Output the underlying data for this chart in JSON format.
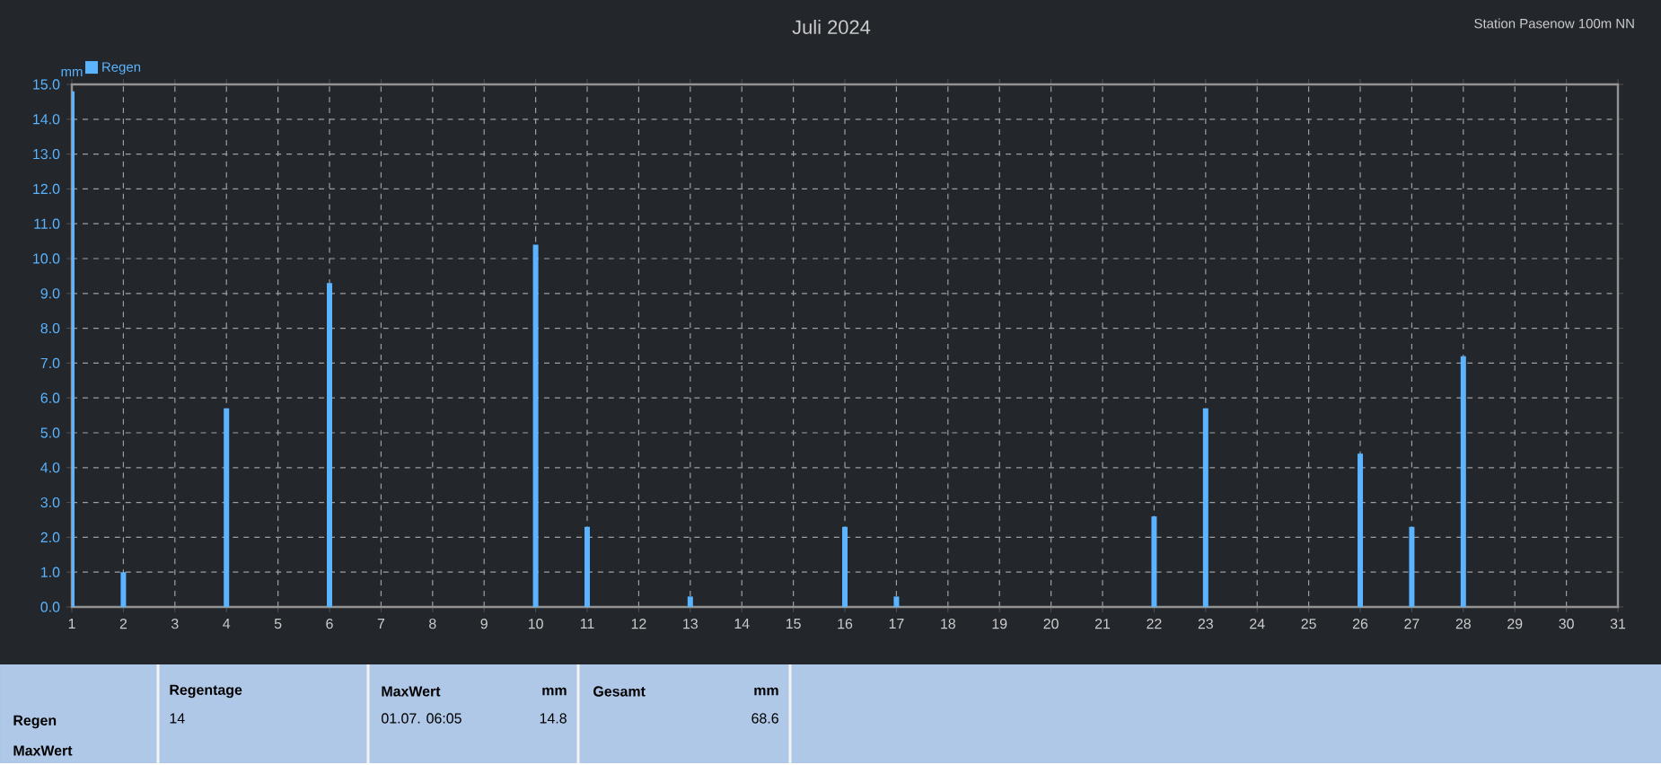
{
  "chart_data": {
    "type": "bar",
    "title": "Juli 2024",
    "subtitle": "Station Pasenow 100m NN",
    "ylabel": "mm",
    "x": [
      1,
      2,
      4,
      6,
      10,
      11,
      13,
      16,
      17,
      22,
      23,
      26,
      27,
      28
    ],
    "series": [
      {
        "name": "Regen",
        "color": "#5ab4ff",
        "values": [
          14.8,
          1.0,
          5.7,
          9.3,
          10.4,
          2.3,
          0.3,
          2.3,
          0.3,
          2.6,
          5.7,
          4.4,
          2.3,
          7.2
        ]
      }
    ],
    "xlim": [
      1,
      31
    ],
    "xticks": [
      1,
      2,
      3,
      4,
      5,
      6,
      7,
      8,
      9,
      10,
      11,
      12,
      13,
      14,
      15,
      16,
      17,
      18,
      19,
      20,
      21,
      22,
      23,
      24,
      25,
      26,
      27,
      28,
      29,
      30,
      31
    ],
    "ylim": [
      0,
      15
    ],
    "yticks": [
      {
        "value": 0,
        "label": "0.0"
      },
      {
        "value": 1,
        "label": "1.0"
      },
      {
        "value": 2,
        "label": "2.0"
      },
      {
        "value": 3,
        "label": "3.0"
      },
      {
        "value": 4,
        "label": "4.0"
      },
      {
        "value": 5,
        "label": "5.0"
      },
      {
        "value": 6,
        "label": "6.0"
      },
      {
        "value": 7,
        "label": "7.0"
      },
      {
        "value": 8,
        "label": "8.0"
      },
      {
        "value": 9,
        "label": "9.0"
      },
      {
        "value": 10,
        "label": "10.0"
      },
      {
        "value": 11,
        "label": "11.0"
      },
      {
        "value": 12,
        "label": "12.0"
      },
      {
        "value": 13,
        "label": "13.0"
      },
      {
        "value": 14,
        "label": "14.0"
      },
      {
        "value": 15,
        "label": "15.0"
      }
    ],
    "grid": true,
    "legend": "top left",
    "annotations": [
      "Regen",
      "MaxWert",
      "Regentage",
      "14",
      "MaxWert",
      "mm",
      "01.07.  06:05",
      "14.8",
      "Gesamt",
      "mm",
      "68.6"
    ]
  }
}
